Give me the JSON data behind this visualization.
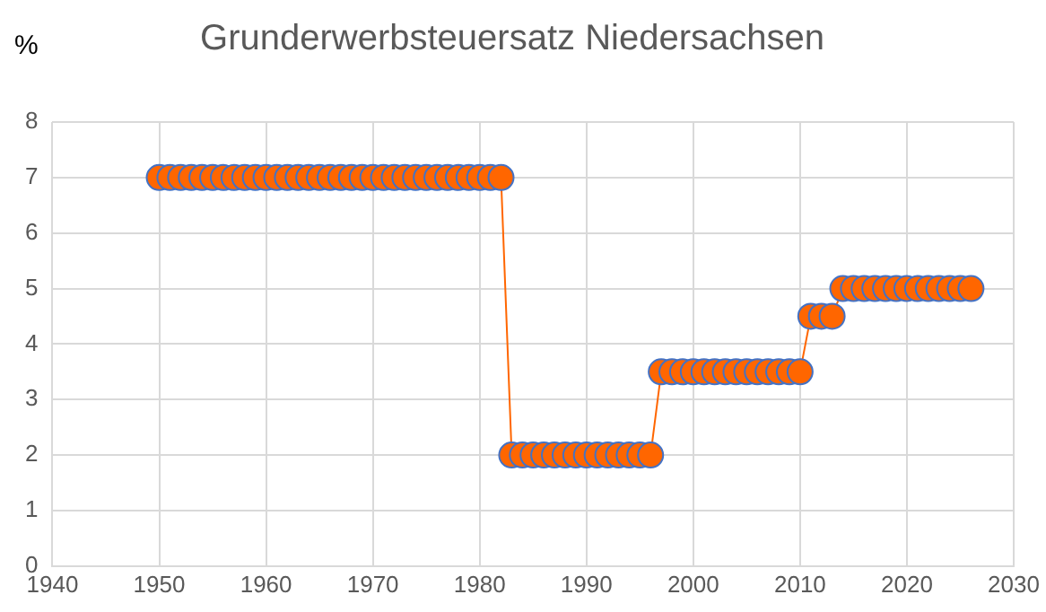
{
  "chart_data": {
    "type": "line",
    "title": "Grunderwerbsteuersatz Niedersachsen",
    "ylabel": "%",
    "x": [
      1950,
      1951,
      1952,
      1953,
      1954,
      1955,
      1956,
      1957,
      1958,
      1959,
      1960,
      1961,
      1962,
      1963,
      1964,
      1965,
      1966,
      1967,
      1968,
      1969,
      1970,
      1971,
      1972,
      1973,
      1974,
      1975,
      1976,
      1977,
      1978,
      1979,
      1980,
      1981,
      1982,
      1983,
      1984,
      1985,
      1986,
      1987,
      1988,
      1989,
      1990,
      1991,
      1992,
      1993,
      1994,
      1995,
      1996,
      1997,
      1998,
      1999,
      2000,
      2001,
      2002,
      2003,
      2004,
      2005,
      2006,
      2007,
      2008,
      2009,
      2010,
      2011,
      2012,
      2013,
      2014,
      2015,
      2016,
      2017,
      2018,
      2019,
      2020,
      2021,
      2022,
      2023,
      2024,
      2025,
      2026
    ],
    "series": [
      {
        "color": "#ff6600",
        "values": [
          7,
          7,
          7,
          7,
          7,
          7,
          7,
          7,
          7,
          7,
          7,
          7,
          7,
          7,
          7,
          7,
          7,
          7,
          7,
          7,
          7,
          7,
          7,
          7,
          7,
          7,
          7,
          7,
          7,
          7,
          7,
          7,
          7,
          2,
          2,
          2,
          2,
          2,
          2,
          2,
          2,
          2,
          2,
          2,
          2,
          2,
          2,
          3.5,
          3.5,
          3.5,
          3.5,
          3.5,
          3.5,
          3.5,
          3.5,
          3.5,
          3.5,
          3.5,
          3.5,
          3.5,
          3.5,
          4.5,
          4.5,
          4.5,
          5,
          5,
          5,
          5,
          5,
          5,
          5,
          5,
          5,
          5,
          5,
          5,
          5
        ]
      }
    ],
    "xlim": [
      1940,
      2030
    ],
    "xticks": [
      1940,
      1950,
      1960,
      1970,
      1980,
      1990,
      2000,
      2010,
      2020,
      2030
    ],
    "ylim": [
      0,
      8
    ],
    "yticks": [
      0,
      1,
      2,
      3,
      4,
      5,
      6,
      7,
      8
    ],
    "grid": true,
    "legend": false,
    "marker": "circle",
    "line_style": "solid"
  }
}
